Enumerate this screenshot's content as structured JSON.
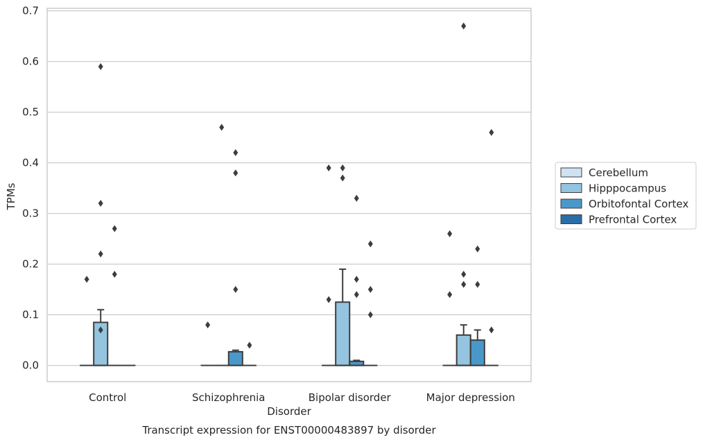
{
  "chart_data": {
    "type": "boxplot",
    "caption": "Transcript expression for ENST00000483897 by disorder",
    "xlabel": "Disorder",
    "ylabel": "TPMs",
    "ylim": [
      -0.032,
      0.705
    ],
    "yticks": [
      0.0,
      0.1,
      0.2,
      0.3,
      0.4,
      0.5,
      0.6,
      0.7
    ],
    "ytick_labels": [
      "0.0",
      "0.1",
      "0.2",
      "0.3",
      "0.4",
      "0.5",
      "0.6",
      "0.7"
    ],
    "grid": "horizontal",
    "legend_position": "right",
    "categories": [
      "Control",
      "Schizophrenia",
      "Bipolar disorder",
      "Major depression"
    ],
    "series": [
      {
        "name": "Cerebellum",
        "color": "#d0e1f2",
        "boxes": [
          {
            "q1": 0,
            "median": 0,
            "q3": 0,
            "whisker_low": 0,
            "whisker_high": 0,
            "outliers": [
              0.17
            ]
          },
          {
            "q1": 0,
            "median": 0,
            "q3": 0,
            "whisker_low": 0,
            "whisker_high": 0,
            "outliers": [
              0.08
            ]
          },
          {
            "q1": 0,
            "median": 0,
            "q3": 0,
            "whisker_low": 0,
            "whisker_high": 0,
            "outliers": [
              0.39,
              0.13
            ]
          },
          {
            "q1": 0,
            "median": 0,
            "q3": 0,
            "whisker_low": 0,
            "whisker_high": 0,
            "outliers": [
              0.26,
              0.14
            ]
          }
        ]
      },
      {
        "name": "Hipppocampus",
        "color": "#94c4df",
        "boxes": [
          {
            "q1": 0,
            "median": 0,
            "q3": 0.085,
            "whisker_low": 0,
            "whisker_high": 0.11,
            "outliers": [
              0.59,
              0.32,
              0.22,
              0.07
            ]
          },
          {
            "q1": 0,
            "median": 0,
            "q3": 0,
            "whisker_low": 0,
            "whisker_high": 0,
            "outliers": [
              0.47
            ]
          },
          {
            "q1": 0,
            "median": 0,
            "q3": 0.125,
            "whisker_low": 0,
            "whisker_high": 0.19,
            "outliers": [
              0.39,
              0.37
            ]
          },
          {
            "q1": 0,
            "median": 0,
            "q3": 0.06,
            "whisker_low": 0,
            "whisker_high": 0.08,
            "outliers": [
              0.67,
              0.18,
              0.16
            ]
          }
        ]
      },
      {
        "name": "Orbitofontal Cortex",
        "color": "#4a98c9",
        "boxes": [
          {
            "q1": 0,
            "median": 0,
            "q3": 0,
            "whisker_low": 0,
            "whisker_high": 0,
            "outliers": [
              0.27,
              0.18
            ]
          },
          {
            "q1": 0,
            "median": 0,
            "q3": 0.027,
            "whisker_low": 0,
            "whisker_high": 0.03,
            "outliers": [
              0.42,
              0.38,
              0.15
            ]
          },
          {
            "q1": 0,
            "median": 0,
            "q3": 0.008,
            "whisker_low": 0,
            "whisker_high": 0.01,
            "outliers": [
              0.33,
              0.17,
              0.14
            ]
          },
          {
            "q1": 0,
            "median": 0,
            "q3": 0.05,
            "whisker_low": 0,
            "whisker_high": 0.07,
            "outliers": [
              0.23,
              0.16
            ]
          }
        ]
      },
      {
        "name": "Prefrontal Cortex",
        "color": "#2a6ea8",
        "boxes": [
          {
            "q1": 0,
            "median": 0,
            "q3": 0,
            "whisker_low": 0,
            "whisker_high": 0,
            "outliers": []
          },
          {
            "q1": 0,
            "median": 0,
            "q3": 0,
            "whisker_low": 0,
            "whisker_high": 0,
            "outliers": [
              0.04
            ]
          },
          {
            "q1": 0,
            "median": 0,
            "q3": 0,
            "whisker_low": 0,
            "whisker_high": 0,
            "outliers": [
              0.24,
              0.15,
              0.1
            ]
          },
          {
            "q1": 0,
            "median": 0,
            "q3": 0,
            "whisker_low": 0,
            "whisker_high": 0,
            "outliers": [
              0.46,
              0.07
            ]
          }
        ]
      }
    ]
  },
  "style": {
    "grid_color": "#cccccc",
    "frame_color": "#cccccc",
    "box_edge_color": "#3d3d3d",
    "outlier_color": "#3d3d3d"
  }
}
